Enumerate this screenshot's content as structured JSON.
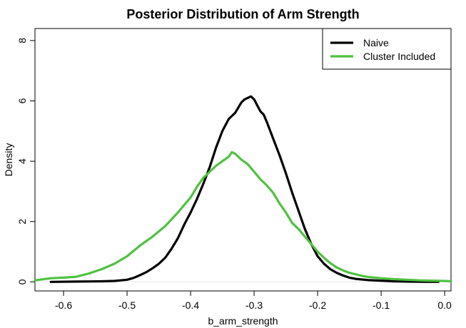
{
  "chart_data": {
    "type": "line",
    "title": "Posterior Distribution of Arm Strength",
    "xlabel": "b_arm_strength",
    "ylabel": "Density",
    "xlim": [
      -0.645,
      0.01
    ],
    "ylim": [
      -0.3,
      8.4
    ],
    "xticks": [
      -0.6,
      -0.5,
      -0.4,
      -0.3,
      -0.2,
      -0.1,
      0.0
    ],
    "xtick_labels": [
      "-0.6",
      "-0.5",
      "-0.4",
      "-0.3",
      "-0.2",
      "-0.1",
      "0.0"
    ],
    "yticks": [
      0,
      2,
      4,
      6,
      8
    ],
    "ytick_labels": [
      "0",
      "2",
      "4",
      "6",
      "8"
    ],
    "grid": false,
    "legend_position": "top-right",
    "series": [
      {
        "name": "Naive",
        "color": "#000000",
        "x": [
          -0.62,
          -0.58,
          -0.54,
          -0.52,
          -0.5,
          -0.49,
          -0.48,
          -0.47,
          -0.46,
          -0.45,
          -0.44,
          -0.43,
          -0.42,
          -0.41,
          -0.4,
          -0.39,
          -0.38,
          -0.37,
          -0.36,
          -0.35,
          -0.34,
          -0.33,
          -0.32,
          -0.315,
          -0.31,
          -0.305,
          -0.3,
          -0.295,
          -0.29,
          -0.285,
          -0.28,
          -0.27,
          -0.26,
          -0.25,
          -0.24,
          -0.23,
          -0.22,
          -0.21,
          -0.2,
          -0.19,
          -0.18,
          -0.17,
          -0.16,
          -0.15,
          -0.14,
          -0.12,
          -0.1,
          -0.08,
          -0.06,
          -0.04,
          -0.01
        ],
        "y": [
          0.0,
          0.01,
          0.02,
          0.03,
          0.07,
          0.13,
          0.22,
          0.32,
          0.45,
          0.6,
          0.8,
          1.1,
          1.45,
          1.9,
          2.3,
          2.75,
          3.25,
          3.8,
          4.45,
          5.0,
          5.4,
          5.6,
          5.95,
          6.05,
          6.1,
          6.15,
          6.05,
          5.85,
          5.65,
          5.55,
          5.3,
          4.75,
          4.2,
          3.6,
          2.95,
          2.35,
          1.75,
          1.25,
          0.85,
          0.6,
          0.42,
          0.3,
          0.21,
          0.14,
          0.1,
          0.06,
          0.04,
          0.02,
          0.01,
          0.005,
          0.0
        ]
      },
      {
        "name": "Cluster Included",
        "color": "#4ec23f",
        "x": [
          -0.645,
          -0.62,
          -0.6,
          -0.58,
          -0.56,
          -0.54,
          -0.52,
          -0.5,
          -0.48,
          -0.46,
          -0.44,
          -0.42,
          -0.41,
          -0.4,
          -0.39,
          -0.38,
          -0.37,
          -0.36,
          -0.35,
          -0.34,
          -0.335,
          -0.33,
          -0.32,
          -0.31,
          -0.3,
          -0.29,
          -0.28,
          -0.27,
          -0.26,
          -0.25,
          -0.24,
          -0.23,
          -0.22,
          -0.21,
          -0.2,
          -0.19,
          -0.18,
          -0.17,
          -0.16,
          -0.15,
          -0.14,
          -0.13,
          -0.12,
          -0.1,
          -0.08,
          -0.06,
          -0.04,
          -0.02,
          0.0,
          0.01
        ],
        "y": [
          0.05,
          0.12,
          0.14,
          0.17,
          0.28,
          0.42,
          0.6,
          0.85,
          1.2,
          1.5,
          1.85,
          2.3,
          2.55,
          2.8,
          3.15,
          3.45,
          3.65,
          3.85,
          4.0,
          4.15,
          4.3,
          4.25,
          4.05,
          3.9,
          3.65,
          3.4,
          3.2,
          2.95,
          2.6,
          2.3,
          1.95,
          1.75,
          1.5,
          1.25,
          1.0,
          0.8,
          0.62,
          0.48,
          0.38,
          0.3,
          0.25,
          0.2,
          0.16,
          0.12,
          0.09,
          0.07,
          0.05,
          0.04,
          0.03,
          0.02
        ]
      }
    ]
  }
}
